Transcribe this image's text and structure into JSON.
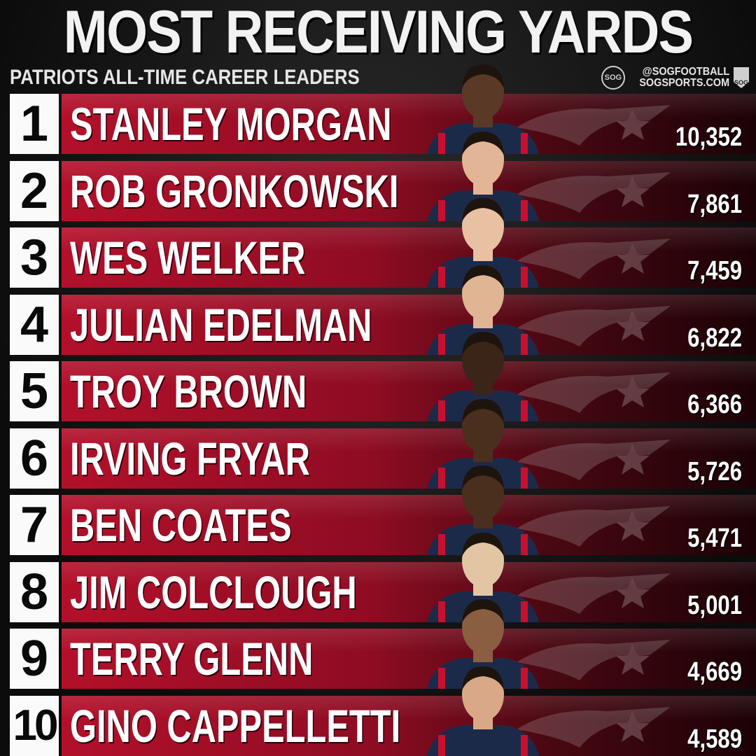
{
  "title": "MOST RECEIVING YARDS",
  "subtitle": "PATRIOTS ALL-TIME CAREER LEADERS",
  "brand": {
    "logo_text": "SOG",
    "handle": "@SOGFOOTBALL",
    "site": "SOGSPORTS.COM",
    "shield_text": "SOG"
  },
  "colors": {
    "bar_red": "#b3102a",
    "rank_box": "#fafafa",
    "jersey_navy": "#1c2a4a",
    "accent_red": "#c8102e"
  },
  "chart_data": {
    "type": "bar",
    "title": "MOST RECEIVING YARDS",
    "subtitle": "PATRIOTS ALL-TIME CAREER LEADERS",
    "ranks": [
      "1",
      "2",
      "3",
      "4",
      "5",
      "6",
      "7",
      "8",
      "9",
      "10"
    ],
    "categories": [
      "STANLEY MORGAN",
      "ROB GRONKOWSKI",
      "WES WELKER",
      "JULIAN EDELMAN",
      "TROY BROWN",
      "IRVING FRYAR",
      "BEN COATES",
      "JIM COLCLOUGH",
      "TERRY GLENN",
      "GINO CAPPELLETTI"
    ],
    "values": [
      10352,
      7861,
      7459,
      6822,
      6366,
      5726,
      5471,
      5001,
      4669,
      4589
    ],
    "value_labels": [
      "10,352",
      "7,861",
      "7,459",
      "6,822",
      "6,366",
      "5,726",
      "5,471",
      "5,001",
      "4,669",
      "4,589"
    ],
    "skin_tones": [
      "#5a3a26",
      "#e3b597",
      "#e8c0a2",
      "#e0b594",
      "#3b2518",
      "#4a2e1e",
      "#4a2e1e",
      "#e2c6a4",
      "#8a5e40",
      "#d9a886"
    ],
    "xlabel": "",
    "ylabel": "",
    "grid": false
  }
}
